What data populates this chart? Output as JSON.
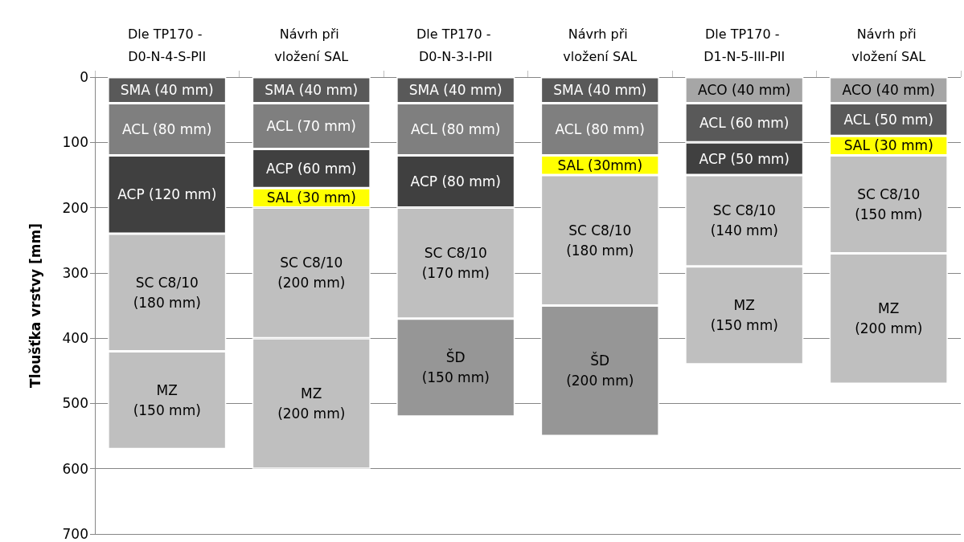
{
  "chart_data": {
    "type": "bar",
    "stacked": true,
    "ylabel": "Tloušťka vrstvy [mm]",
    "categories": [
      "Dle TP170 - D0-N-4-S-PII",
      "Návrh při vložení SAL",
      "Dle TP170 - D0-N-3-I-PII",
      "Návrh při vložení SAL",
      "Dle TP170 - D1-N-5-III-PII",
      "Návrh při vložení SAL"
    ],
    "ylim": [
      700,
      0
    ],
    "yticks": [
      0,
      100,
      200,
      300,
      400,
      500,
      600,
      700
    ],
    "grid": "y",
    "series": [
      {
        "values": [
          40,
          40,
          40,
          40,
          40,
          40
        ],
        "colors": [
          "#595959",
          "#595959",
          "#595959",
          "#595959",
          "#a6a6a6",
          "#a6a6a6"
        ],
        "value_labels": [
          "SMA (40 mm)",
          "SMA (40 mm)",
          "SMA (40 mm)",
          "SMA (40 mm)",
          "ACO (40 mm)",
          "ACO (40 mm)"
        ]
      },
      {
        "values": [
          80,
          70,
          80,
          80,
          60,
          50
        ],
        "colors": [
          "#7f7f7f",
          "#7f7f7f",
          "#7f7f7f",
          "#7f7f7f",
          "#595959",
          "#595959"
        ],
        "value_labels": [
          "ACL (80 mm)",
          "ACL (70 mm)",
          "ACL (80 mm)",
          "ACL (80 mm)",
          "ACL (60 mm)",
          "ACL (50 mm)"
        ]
      },
      {
        "values": [
          120,
          60,
          80,
          30,
          50,
          30
        ],
        "colors": [
          "#404040",
          "#404040",
          "#404040",
          "#ffff00",
          "#404040",
          "#ffff00"
        ],
        "value_labels": [
          "ACP (120 mm)",
          "ACP (60 mm)",
          "ACP (80 mm)",
          "SAL (30mm)",
          "ACP (50 mm)",
          "SAL (30 mm)"
        ]
      },
      {
        "values": [
          180,
          30,
          170,
          200,
          140,
          150
        ],
        "colors": [
          "#bfbfbf",
          "#ffff00",
          "#bfbfbf",
          "#bfbfbf",
          "#bfbfbf",
          "#bfbfbf"
        ],
        "value_labels": [
          "SC C8/10\n(180 mm)",
          "SAL (30 mm)",
          "SC C8/10\n(170 mm)",
          "SC C8/10\n(180 mm)",
          "SC C8/10\n(140 mm)",
          "SC C8/10\n(150 mm)"
        ]
      },
      {
        "values": [
          150,
          200,
          150,
          200,
          150,
          200
        ],
        "colors": [
          "#bfbfbf",
          "#bfbfbf",
          "#969696",
          "#969696",
          "#bfbfbf",
          "#bfbfbf"
        ],
        "value_labels": [
          "MZ\n(150 mm)",
          "SC C8/10\n(200 mm)",
          "ŠD\n(150 mm)",
          "ŠD\n(200 mm)",
          "MZ\n(150 mm)",
          "MZ\n(200 mm)"
        ]
      },
      {
        "values": [
          null,
          200,
          null,
          null,
          null,
          null
        ],
        "colors": [
          "#bfbfbf",
          "#bfbfbf",
          "#bfbfbf",
          "#bfbfbf",
          "#bfbfbf",
          "#bfbfbf"
        ],
        "value_labels": [
          null,
          "MZ\n(200 mm)",
          null,
          null,
          null,
          null
        ]
      }
    ]
  }
}
